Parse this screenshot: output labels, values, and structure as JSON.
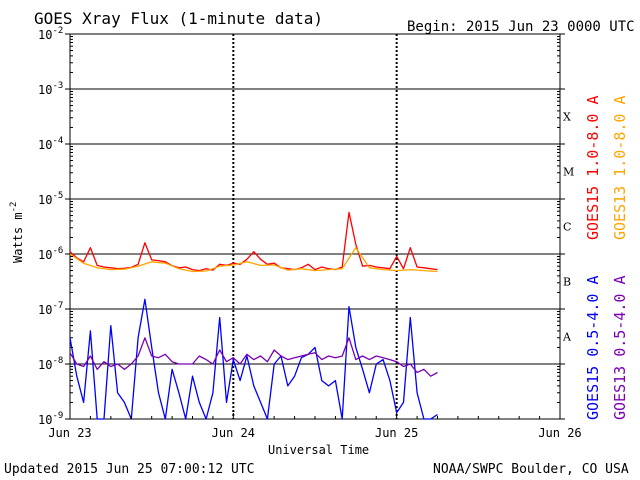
{
  "header": {
    "title": "GOES Xray Flux (1-minute data)",
    "begin": "Begin:  2015 Jun 23 0000 UTC"
  },
  "footer": {
    "updated": "Updated 2015 Jun 25 07:00:12 UTC",
    "credit": "NOAA/SWPC Boulder, CO USA"
  },
  "colors": {
    "goes15_long": "#ff0000",
    "goes13_long": "#ffa500",
    "goes15_short": "#0000ff",
    "goes13_short": "#7b00b4",
    "frame": "#000000"
  },
  "chart_data": {
    "type": "line",
    "title": "GOES Xray Flux (1-minute data)",
    "xlabel": "Universal Time",
    "ylabel": "Watts m",
    "ylabel_sup": "-2",
    "y_scale": "log",
    "ylim": [
      1e-09,
      0.01
    ],
    "xlim_hours": [
      0,
      72
    ],
    "x_ticks": [
      {
        "hour": 0,
        "label": "Jun 23"
      },
      {
        "hour": 24,
        "label": "Jun 24"
      },
      {
        "hour": 48,
        "label": "Jun 25"
      },
      {
        "hour": 72,
        "label": "Jun 26"
      }
    ],
    "y_ticks": [
      {
        "exp": -9,
        "label": "10",
        "sup": "-9"
      },
      {
        "exp": -8,
        "label": "10",
        "sup": "-8"
      },
      {
        "exp": -7,
        "label": "10",
        "sup": "-7"
      },
      {
        "exp": -6,
        "label": "10",
        "sup": "-6"
      },
      {
        "exp": -5,
        "label": "10",
        "sup": "-5"
      },
      {
        "exp": -4,
        "label": "10",
        "sup": "-4"
      },
      {
        "exp": -3,
        "label": "10",
        "sup": "-3"
      },
      {
        "exp": -2,
        "label": "10",
        "sup": "-2"
      }
    ],
    "flare_classes": [
      {
        "label": "A",
        "exp": -8
      },
      {
        "label": "B",
        "exp": -7
      },
      {
        "label": "C",
        "exp": -6
      },
      {
        "label": "M",
        "exp": -5
      },
      {
        "label": "X",
        "exp": -4
      }
    ],
    "grid": true,
    "legend_position": "right",
    "series": [
      {
        "name": "GOES15 1.0-8.0 A",
        "color": "#ff0000",
        "x_hours": [
          0,
          1,
          2,
          3,
          4,
          5,
          6,
          7,
          8,
          9,
          10,
          11,
          12,
          13,
          14,
          15,
          16,
          17,
          18,
          19,
          20,
          21,
          22,
          23,
          24,
          25,
          26,
          27,
          28,
          29,
          30,
          31,
          32,
          33,
          34,
          35,
          36,
          37,
          38,
          39,
          40,
          41,
          42,
          43,
          44,
          45,
          46,
          47,
          48,
          49,
          50,
          51,
          52,
          53,
          54
        ],
        "values": [
          1.1e-06,
          8.5e-07,
          7.2e-07,
          1.3e-06,
          6.2e-07,
          5.8e-07,
          5.6e-07,
          5.4e-07,
          5.5e-07,
          5.7e-07,
          6.5e-07,
          1.6e-06,
          7.8e-07,
          7.6e-07,
          7.2e-07,
          6.1e-07,
          5.6e-07,
          5.8e-07,
          5.2e-07,
          5e-07,
          5.4e-07,
          5.1e-07,
          6.5e-07,
          6.2e-07,
          6.8e-07,
          6.5e-07,
          8e-07,
          1.1e-06,
          8e-07,
          6.5e-07,
          6.8e-07,
          5.6e-07,
          5.4e-07,
          5.2e-07,
          5.6e-07,
          6.5e-07,
          5.2e-07,
          5.8e-07,
          5.4e-07,
          5.2e-07,
          5.8e-07,
          5.7e-06,
          1.5e-06,
          6e-07,
          6.2e-07,
          5.8e-07,
          5.6e-07,
          5.4e-07,
          9e-07,
          5.4e-07,
          1.3e-06,
          5.8e-07,
          5.6e-07,
          5.4e-07,
          5.2e-07
        ]
      },
      {
        "name": "GOES13 1.0-8.0 A",
        "color": "#ffa500",
        "x_hours": [
          0,
          2,
          4,
          6,
          8,
          10,
          12,
          14,
          16,
          18,
          20,
          22,
          24,
          26,
          28,
          30,
          32,
          34,
          36,
          38,
          40,
          42,
          44,
          46,
          48,
          50,
          52,
          54
        ],
        "values": [
          1e-06,
          6.8e-07,
          5.6e-07,
          5.2e-07,
          5.3e-07,
          6e-07,
          7.2e-07,
          6.8e-07,
          5.4e-07,
          4.8e-07,
          4.9e-07,
          6e-07,
          6.3e-07,
          7.2e-07,
          6.2e-07,
          6.3e-07,
          5.1e-07,
          5.4e-07,
          5e-07,
          5.2e-07,
          5.4e-07,
          1.3e-06,
          5.6e-07,
          5.2e-07,
          5e-07,
          5.2e-07,
          5e-07,
          4.8e-07
        ]
      },
      {
        "name": "GOES15 0.5-4.0 A",
        "color": "#0000ff",
        "x_hours": [
          0,
          1,
          2,
          3,
          4,
          5,
          6,
          7,
          8,
          9,
          10,
          11,
          12,
          13,
          14,
          15,
          16,
          17,
          18,
          19,
          20,
          21,
          22,
          23,
          24,
          25,
          26,
          27,
          28,
          29,
          30,
          31,
          32,
          33,
          34,
          35,
          36,
          37,
          38,
          39,
          40,
          41,
          42,
          43,
          44,
          45,
          46,
          47,
          48,
          49,
          50,
          51,
          52,
          53,
          54
        ],
        "values": [
          3e-08,
          6e-09,
          2e-09,
          4e-08,
          1e-09,
          1e-09,
          5e-08,
          3e-09,
          2e-09,
          1e-09,
          3e-08,
          1.5e-07,
          2e-08,
          3e-09,
          1e-09,
          8e-09,
          3e-09,
          1e-09,
          6e-09,
          2e-09,
          1e-09,
          3e-09,
          7e-08,
          2e-09,
          1.2e-08,
          5e-09,
          1.4e-08,
          4e-09,
          2e-09,
          1e-09,
          1e-08,
          1.4e-08,
          4e-09,
          6e-09,
          1.3e-08,
          1.5e-08,
          2e-08,
          5e-09,
          4e-09,
          5e-09,
          1e-09,
          1.1e-07,
          2e-08,
          8e-09,
          3e-09,
          1e-08,
          1.2e-08,
          5e-09,
          1.3e-09,
          2e-09,
          7e-08,
          3e-09,
          1e-09,
          1e-09,
          1.2e-09
        ]
      },
      {
        "name": "GOES13 0.5-4.0 A",
        "color": "#7b00b4",
        "x_hours": [
          0,
          1,
          2,
          3,
          4,
          5,
          6,
          7,
          8,
          9,
          10,
          11,
          12,
          13,
          14,
          15,
          16,
          17,
          18,
          19,
          20,
          21,
          22,
          23,
          24,
          25,
          26,
          27,
          28,
          29,
          30,
          31,
          32,
          33,
          34,
          35,
          36,
          37,
          38,
          39,
          40,
          41,
          42,
          43,
          44,
          45,
          46,
          47,
          48,
          49,
          50,
          51,
          52,
          53,
          54
        ],
        "values": [
          1.6e-08,
          1e-08,
          9e-09,
          1.4e-08,
          8e-09,
          1.1e-08,
          9e-09,
          1e-08,
          8e-09,
          1e-08,
          1.4e-08,
          3e-08,
          1.4e-08,
          1.3e-08,
          1.5e-08,
          1.1e-08,
          1e-08,
          1e-08,
          1e-08,
          1.4e-08,
          1.2e-08,
          1e-08,
          1.8e-08,
          1.1e-08,
          1.3e-08,
          1e-08,
          1.5e-08,
          1.2e-08,
          1.4e-08,
          1.1e-08,
          1.8e-08,
          1.4e-08,
          1.2e-08,
          1.3e-08,
          1.4e-08,
          1.5e-08,
          1.6e-08,
          1.2e-08,
          1.4e-08,
          1.3e-08,
          1.4e-08,
          3e-08,
          1.2e-08,
          1.4e-08,
          1.2e-08,
          1.4e-08,
          1.3e-08,
          1.2e-08,
          1.1e-08,
          9e-09,
          1e-08,
          7e-09,
          8e-09,
          6e-09,
          7e-09
        ]
      }
    ]
  }
}
